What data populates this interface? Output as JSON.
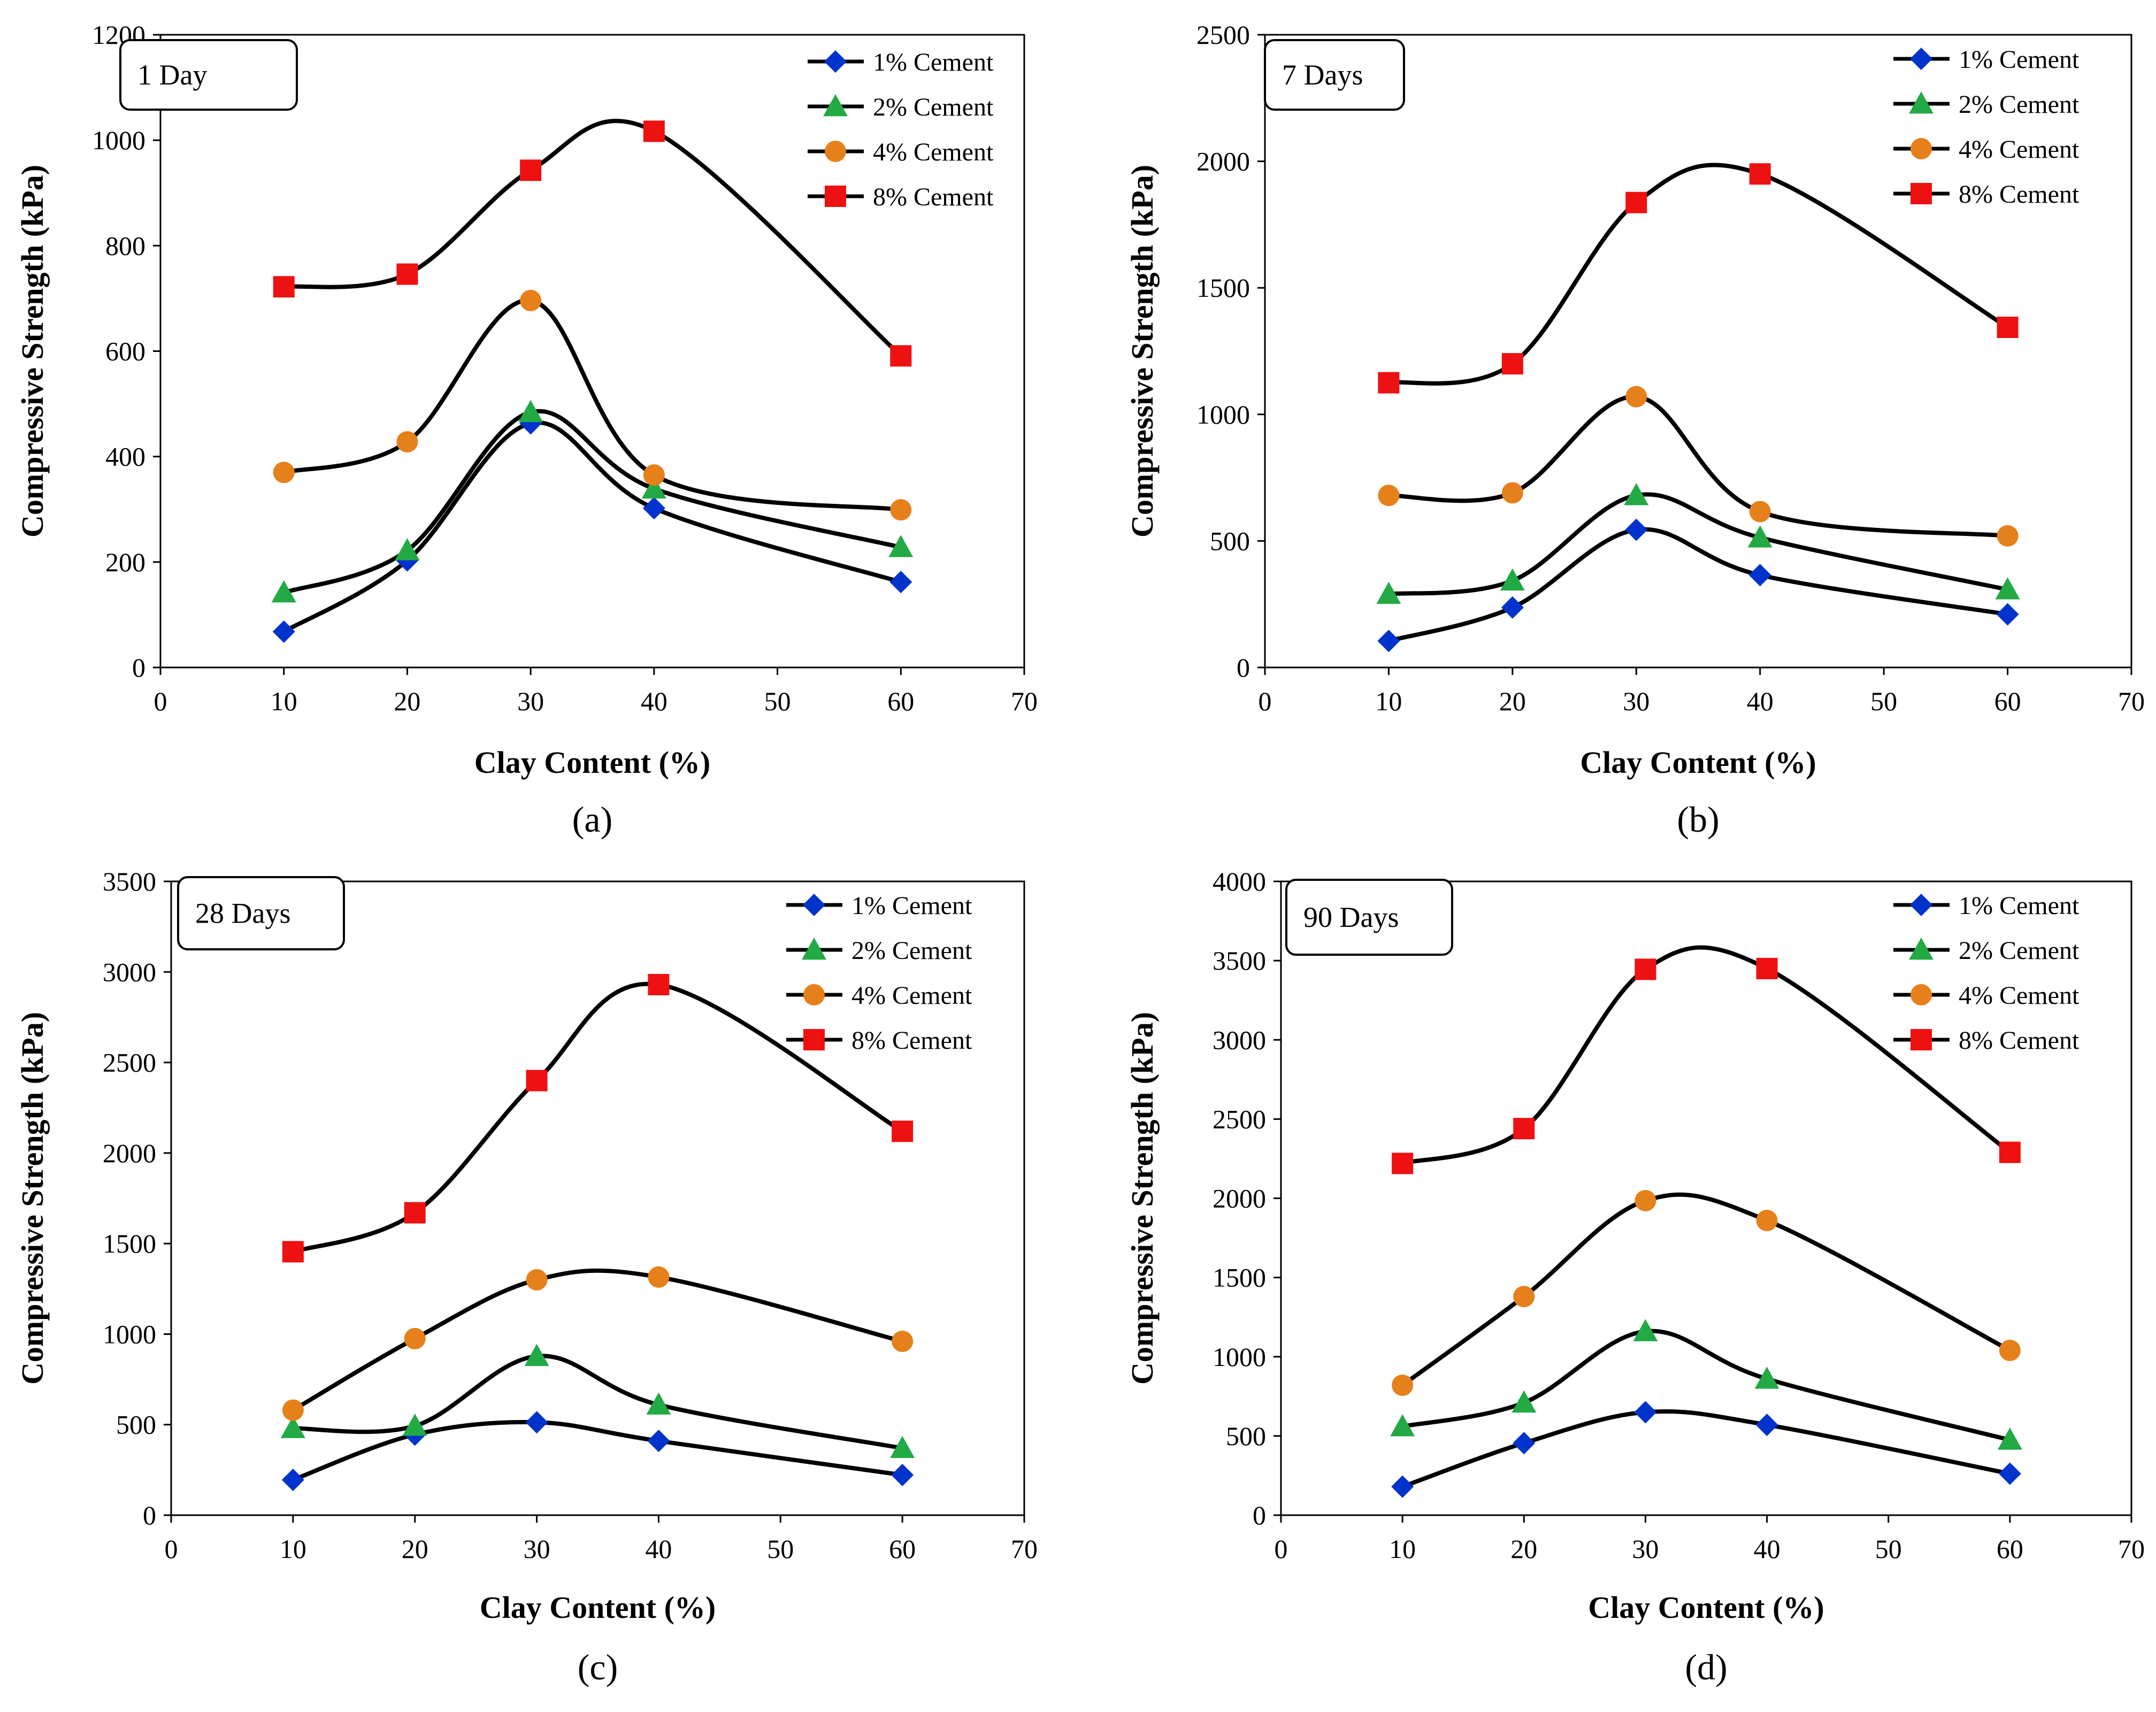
{
  "figure": {
    "colors": {
      "1% Cement": "#0033cc",
      "2% Cement": "#22aa44",
      "4% Cement": "#e6801a",
      "8% Cement": "#ee1111",
      "line": "#000000"
    },
    "markers": {
      "1% Cement": "diamond",
      "2% Cement": "triangle",
      "4% Cement": "circle",
      "8% Cement": "square"
    }
  },
  "chart_data": [
    {
      "type": "line",
      "panel_label": "(a)",
      "title": "1 Day",
      "xlabel": "Clay Content (%)",
      "ylabel": "Compressive Strength (kPa)",
      "xlim": [
        0,
        70
      ],
      "ylim": [
        0,
        1200
      ],
      "xticks": [
        0,
        10,
        20,
        30,
        40,
        50,
        60,
        70
      ],
      "yticks": [
        0,
        200,
        400,
        600,
        800,
        1000,
        1200
      ],
      "x": [
        10,
        20,
        30,
        40,
        60
      ],
      "legend_position": "top-right",
      "series": [
        {
          "name": "1% Cement",
          "values": [
            68,
            203,
            463,
            302,
            162
          ]
        },
        {
          "name": "2% Cement",
          "values": [
            142,
            222,
            484,
            339,
            228
          ]
        },
        {
          "name": "4% Cement",
          "values": [
            370,
            428,
            696,
            365,
            299
          ]
        },
        {
          "name": "8% Cement",
          "values": [
            722,
            746,
            943,
            1017,
            591
          ]
        }
      ]
    },
    {
      "type": "line",
      "panel_label": "(b)",
      "title": "7 Days",
      "xlabel": "Clay Content (%)",
      "ylabel": "Compressive Strength  (kPa)",
      "xlim": [
        0,
        70
      ],
      "ylim": [
        0,
        2500
      ],
      "xticks": [
        0,
        10,
        20,
        30,
        40,
        50,
        60,
        70
      ],
      "yticks": [
        0,
        500,
        1000,
        1500,
        2000,
        2500
      ],
      "x": [
        10,
        20,
        30,
        40,
        60
      ],
      "legend_position": "top-right",
      "series": [
        {
          "name": "1% Cement",
          "values": [
            105,
            237,
            544,
            365,
            210
          ]
        },
        {
          "name": "2% Cement",
          "values": [
            290,
            343,
            680,
            513,
            308
          ]
        },
        {
          "name": "4% Cement",
          "values": [
            680,
            690,
            1070,
            616,
            520
          ]
        },
        {
          "name": "8% Cement",
          "values": [
            1125,
            1200,
            1837,
            1950,
            1344
          ]
        }
      ]
    },
    {
      "type": "line",
      "panel_label": "(c)",
      "title": "28 Days",
      "xlabel": "Clay Content (%)",
      "ylabel": "Compressive Strength (kPa)",
      "xlim": [
        0,
        70
      ],
      "ylim": [
        0,
        3500
      ],
      "xticks": [
        0,
        10,
        20,
        30,
        40,
        50,
        60,
        70
      ],
      "yticks": [
        0,
        500,
        1000,
        1500,
        2000,
        2500,
        3000,
        3500
      ],
      "x": [
        10,
        20,
        30,
        40,
        60
      ],
      "legend_position": "top-right",
      "series": [
        {
          "name": "1% Cement",
          "values": [
            195,
            445,
            513,
            410,
            222
          ]
        },
        {
          "name": "2% Cement",
          "values": [
            480,
            493,
            878,
            610,
            370
          ]
        },
        {
          "name": "4% Cement",
          "values": [
            580,
            975,
            1300,
            1315,
            960
          ]
        },
        {
          "name": "8% Cement",
          "values": [
            1455,
            1670,
            2400,
            2930,
            2120
          ]
        }
      ]
    },
    {
      "type": "line",
      "panel_label": "(d)",
      "title": "90 Days",
      "xlabel": "Clay Content (%)",
      "ylabel": "Compressive Strength  (kPa)",
      "xlim": [
        0,
        70
      ],
      "ylim": [
        0,
        4000
      ],
      "xticks": [
        0,
        10,
        20,
        30,
        40,
        50,
        60,
        70
      ],
      "yticks": [
        0,
        500,
        1000,
        1500,
        2000,
        2500,
        3000,
        3500,
        4000
      ],
      "x": [
        10,
        20,
        30,
        40,
        60
      ],
      "legend_position": "top-right",
      "series": [
        {
          "name": "1% Cement",
          "values": [
            180,
            455,
            650,
            570,
            262
          ]
        },
        {
          "name": "2% Cement",
          "values": [
            560,
            710,
            1160,
            860,
            475
          ]
        },
        {
          "name": "4% Cement",
          "values": [
            820,
            1380,
            1985,
            1860,
            1040
          ]
        },
        {
          "name": "8% Cement",
          "values": [
            2220,
            2440,
            3445,
            3450,
            2290
          ]
        }
      ]
    }
  ]
}
